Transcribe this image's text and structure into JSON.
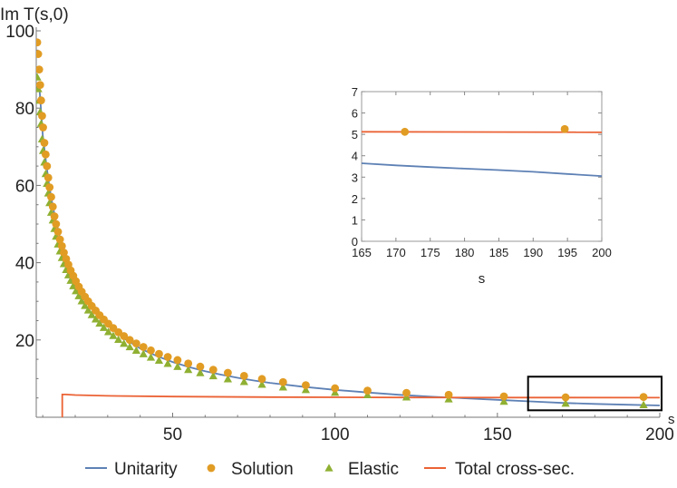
{
  "chart_data": [
    {
      "type": "line",
      "role": "main",
      "ylabel": "Im T(s,0)",
      "xlabel": "s",
      "xlim": [
        8,
        200
      ],
      "ylim": [
        0,
        100
      ],
      "xticks": [
        50,
        100,
        150,
        200
      ],
      "yticks": [
        20,
        40,
        60,
        80,
        100
      ],
      "colors": {
        "unitarity": "#5e81b5",
        "solution": "#e19c24",
        "elastic": "#8fb032",
        "total": "#eb6235",
        "box": "#000000"
      },
      "legend": {
        "placement": "bottom",
        "items": [
          {
            "name": "Unitarity",
            "marker": "line",
            "color": "#5e81b5"
          },
          {
            "name": "Solution",
            "marker": "circle",
            "color": "#e19c24"
          },
          {
            "name": "Elastic",
            "marker": "triangle",
            "color": "#8fb032"
          },
          {
            "name": "Total cross-sec.",
            "marker": "line",
            "color": "#eb6235"
          }
        ]
      },
      "series": [
        {
          "name": "Unitarity",
          "kind": "line",
          "x": [
            9,
            10,
            11,
            12,
            13,
            14,
            16,
            18,
            20,
            23,
            26,
            30,
            35,
            40,
            45,
            50,
            55,
            60,
            65,
            70,
            75,
            80,
            90,
            100,
            110,
            120,
            130,
            140,
            150,
            160,
            170,
            180,
            190,
            200
          ],
          "y": [
            85,
            73,
            66,
            60,
            55,
            51,
            44,
            39.5,
            35.5,
            31,
            27.5,
            23.8,
            20.4,
            17.8,
            15.9,
            14.3,
            13,
            11.9,
            11,
            10.2,
            9.5,
            8.9,
            7.9,
            7.1,
            6.4,
            5.8,
            5.3,
            4.9,
            4.5,
            4.1,
            3.7,
            3.45,
            3.25,
            3.05
          ]
        },
        {
          "name": "Solution",
          "kind": "scatter",
          "marker": "circle",
          "x": [
            8.3,
            8.6,
            8.9,
            9.2,
            9.5,
            9.8,
            10.1,
            10.5,
            10.9,
            11.3,
            11.7,
            12.1,
            12.6,
            13.1,
            13.6,
            14.1,
            14.7,
            15.3,
            15.9,
            16.5,
            17.2,
            17.9,
            18.6,
            19.4,
            20.2,
            21.1,
            22,
            23,
            24,
            25.1,
            26.3,
            27.5,
            28.8,
            30.2,
            31.7,
            33.3,
            35,
            36.8,
            38.8,
            41,
            43.3,
            45.8,
            48.5,
            51.5,
            54.8,
            58.5,
            62.5,
            67,
            72,
            77.5,
            84,
            91,
            100,
            110,
            122,
            135,
            152,
            171,
            195
          ],
          "y": [
            97,
            94,
            90,
            86,
            82,
            78,
            75,
            71,
            68,
            65,
            62,
            59.5,
            57,
            54.5,
            52,
            50,
            48,
            46,
            44.3,
            42.6,
            41,
            39.5,
            38,
            36.6,
            35.2,
            33.8,
            32.5,
            31.2,
            30,
            28.8,
            27.6,
            26.4,
            25.3,
            24.2,
            23.1,
            22,
            21,
            20,
            19.1,
            18.2,
            17.3,
            16.4,
            15.6,
            14.8,
            13.9,
            13.1,
            12.3,
            11.5,
            10.7,
            9.9,
            9.1,
            8.3,
            7.5,
            6.9,
            6.3,
            5.8,
            5.4,
            5.15,
            5.25
          ]
        },
        {
          "name": "Elastic",
          "kind": "scatter",
          "marker": "triangle",
          "x": [
            8.3,
            8.6,
            8.9,
            9.2,
            9.5,
            9.8,
            10.1,
            10.5,
            10.9,
            11.3,
            11.7,
            12.1,
            12.6,
            13.1,
            13.6,
            14.1,
            14.7,
            15.3,
            15.9,
            16.5,
            17.2,
            17.9,
            18.6,
            19.4,
            20.2,
            21.1,
            22,
            23,
            24,
            25.1,
            26.3,
            27.5,
            28.8,
            30.2,
            31.7,
            33.3,
            35,
            36.8,
            38.8,
            41,
            43.3,
            45.8,
            48.5,
            51.5,
            54.8,
            58.5,
            62.5,
            67,
            72,
            77.5,
            84,
            91,
            100,
            110,
            122,
            135,
            152,
            171,
            195
          ],
          "y": [
            88,
            85,
            82,
            79,
            76,
            72,
            69,
            66,
            63,
            60.5,
            58,
            55.5,
            53,
            51,
            48.8,
            46.8,
            44.8,
            43,
            41.3,
            39.7,
            38.2,
            36.8,
            35.4,
            34,
            32.7,
            31.4,
            30.1,
            28.9,
            27.7,
            26.5,
            25.4,
            24.3,
            23.2,
            22.1,
            21.1,
            20.1,
            19.1,
            18.2,
            17.3,
            16.4,
            15.5,
            14.7,
            13.9,
            13.1,
            12.3,
            11.5,
            10.7,
            9.9,
            9.2,
            8.5,
            7.8,
            7.1,
            6.4,
            5.8,
            5.2,
            4.7,
            4.1,
            3.6,
            3.2
          ]
        },
        {
          "name": "Total cross-sec.",
          "kind": "line",
          "x": [
            16,
            16,
            17,
            20,
            30,
            50,
            80,
            120,
            160,
            200
          ],
          "y": [
            0,
            5.9,
            5.9,
            5.75,
            5.55,
            5.35,
            5.2,
            5.12,
            5.1,
            5.08
          ]
        }
      ],
      "zoom_box": {
        "x": [
          160,
          200
        ],
        "y": [
          1.8,
          10.5
        ]
      }
    },
    {
      "type": "line",
      "role": "inset",
      "xlabel": "s",
      "xlim": [
        165,
        200
      ],
      "ylim": [
        0,
        7
      ],
      "xticks": [
        165,
        170,
        175,
        180,
        185,
        190,
        195,
        200
      ],
      "yticks": [
        0,
        1,
        2,
        3,
        4,
        5,
        6,
        7
      ],
      "series": [
        {
          "name": "Unitarity",
          "kind": "line",
          "x": [
            165,
            170,
            175,
            180,
            185,
            190,
            195,
            200
          ],
          "y": [
            3.65,
            3.55,
            3.47,
            3.4,
            3.33,
            3.25,
            3.15,
            3.05
          ]
        },
        {
          "name": "Total cross-sec.",
          "kind": "line",
          "x": [
            165,
            200
          ],
          "y": [
            5.12,
            5.1
          ]
        },
        {
          "name": "Solution",
          "kind": "scatter",
          "marker": "circle",
          "x": [
            171.3,
            194.6
          ],
          "y": [
            5.12,
            5.25
          ]
        }
      ]
    }
  ]
}
